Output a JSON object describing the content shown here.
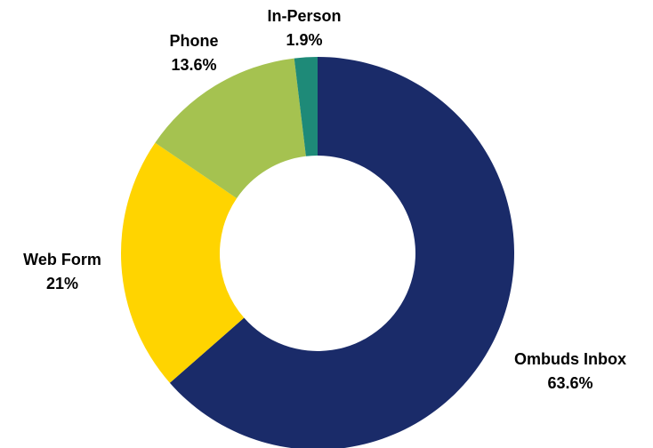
{
  "chart_data": {
    "type": "pie",
    "style": "donut",
    "categories": [
      "Ombuds Inbox",
      "Web Form",
      "Phone",
      "In-Person"
    ],
    "values": [
      63.6,
      21,
      13.6,
      1.9
    ],
    "value_labels": [
      "63.6%",
      "21%",
      "13.6%",
      "1.9%"
    ],
    "colors": [
      "#1a2b69",
      "#ffd400",
      "#a5c250",
      "#1e8a78"
    ],
    "title": "",
    "legend": "none"
  }
}
